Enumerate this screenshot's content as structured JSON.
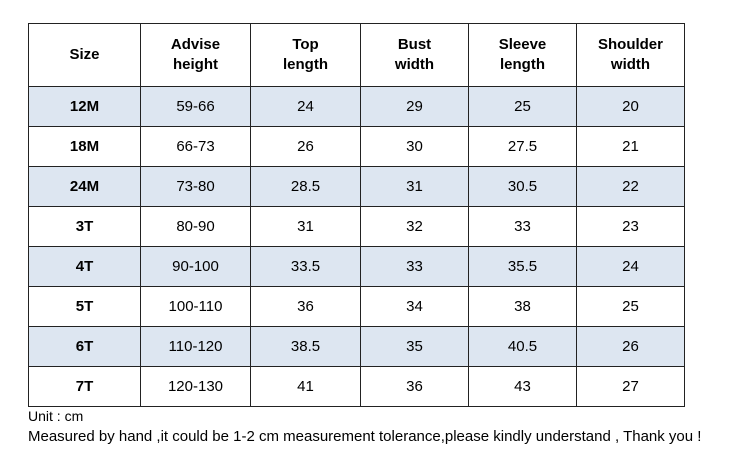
{
  "headers": [
    [
      "Size"
    ],
    [
      "Advise",
      "height"
    ],
    [
      "Top",
      "length"
    ],
    [
      "Bust",
      "width"
    ],
    [
      "Sleeve",
      "length"
    ],
    [
      "Shoulder",
      "width"
    ]
  ],
  "rows": [
    [
      "12M",
      "59-66",
      "24",
      "29",
      "25",
      "20"
    ],
    [
      "18M",
      "66-73",
      "26",
      "30",
      "27.5",
      "21"
    ],
    [
      "24M",
      "73-80",
      "28.5",
      "31",
      "30.5",
      "22"
    ],
    [
      "3T",
      "80-90",
      "31",
      "32",
      "33",
      "23"
    ],
    [
      "4T",
      "90-100",
      "33.5",
      "33",
      "35.5",
      "24"
    ],
    [
      "5T",
      "100-110",
      "36",
      "34",
      "38",
      "25"
    ],
    [
      "6T",
      "110-120",
      "38.5",
      "35",
      "40.5",
      "26"
    ],
    [
      "7T",
      "120-130",
      "41",
      "36",
      "43",
      "27"
    ]
  ],
  "unit_note": "Unit : cm",
  "measure_note": "Measured by hand ,it could be 1-2 cm measurement tolerance,please kindly understand , Thank you !",
  "colors": {
    "shaded_row": "#dde6f1",
    "border": "#222222"
  }
}
